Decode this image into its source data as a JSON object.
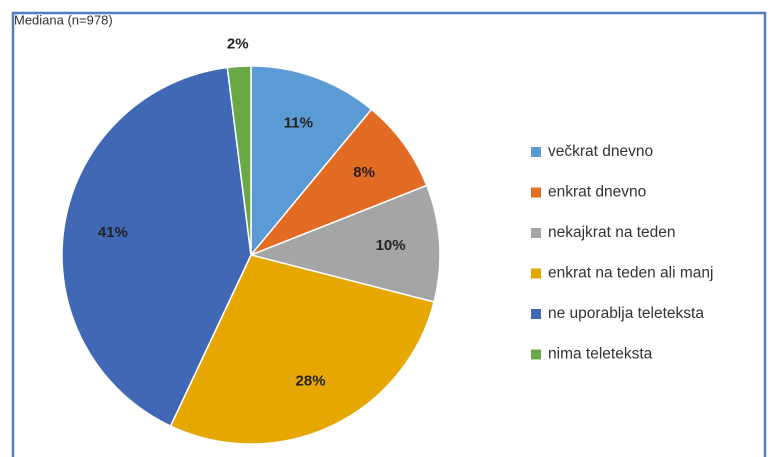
{
  "chart_data": {
    "type": "pie",
    "title": "Mediana (n=978)",
    "categories": [
      "večkrat dnevno",
      "enkrat dnevno",
      "nekajkrat na teden",
      "enkrat na teden ali manj",
      "ne uporablja teleteksta",
      "nima teleteksta"
    ],
    "values": [
      11,
      8,
      10,
      28,
      41,
      2
    ],
    "value_labels": [
      "11%",
      "8%",
      "10%",
      "28%",
      "41%",
      "2%"
    ],
    "colors": [
      "#5b9bd5",
      "#e36c24",
      "#a5a5a5",
      "#e6a700",
      "#4068b5",
      "#6aa846"
    ],
    "legend": "right"
  }
}
